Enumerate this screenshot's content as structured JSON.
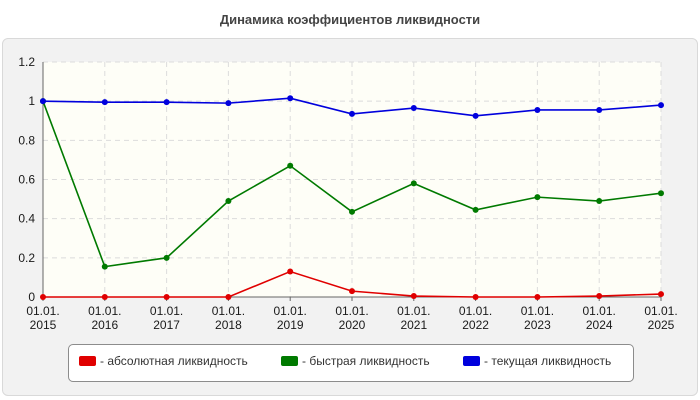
{
  "title": "Динамика коэффициентов ликвидности",
  "chart_data": {
    "type": "line",
    "x_labels": [
      [
        "01.01.",
        "2015"
      ],
      [
        "01.01.",
        "2016"
      ],
      [
        "01.01.",
        "2017"
      ],
      [
        "01.01.",
        "2018"
      ],
      [
        "01.01.",
        "2019"
      ],
      [
        "01.01.",
        "2020"
      ],
      [
        "01.01.",
        "2021"
      ],
      [
        "01.01.",
        "2022"
      ],
      [
        "01.01.",
        "2023"
      ],
      [
        "01.01.",
        "2024"
      ],
      [
        "01.01.",
        "2025"
      ]
    ],
    "ylim": [
      0,
      1.2
    ],
    "yticks": [
      "0",
      "0.2",
      "0.4",
      "0.6",
      "0.8",
      "1",
      "1.2"
    ],
    "grid": true,
    "legend_position": "bottom",
    "series": [
      {
        "name": "- абсолютная ликвидность",
        "color": "#e00000",
        "values": [
          0.0,
          0.0,
          0.0,
          0.0,
          0.13,
          0.03,
          0.005,
          0.0,
          0.0,
          0.005,
          0.015
        ]
      },
      {
        "name": "- быстрая ликвидность",
        "color": "#007a00",
        "values": [
          1.0,
          0.155,
          0.2,
          0.49,
          0.67,
          0.435,
          0.58,
          0.445,
          0.51,
          0.49,
          0.53
        ]
      },
      {
        "name": "- текущая ликвидность",
        "color": "#0000dd",
        "values": [
          1.0,
          0.995,
          0.995,
          0.99,
          1.015,
          0.935,
          0.965,
          0.925,
          0.955,
          0.955,
          0.98
        ]
      }
    ]
  }
}
